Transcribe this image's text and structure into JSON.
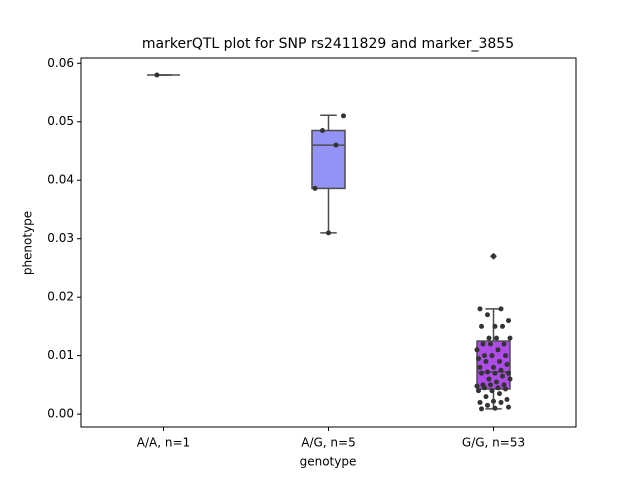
{
  "chart_data": {
    "type": "box",
    "title": "markerQTL plot for SNP rs2411829 and marker_3855",
    "x_label": "genotype",
    "y_label": "phenotype",
    "categories": [
      "A/A, n=1",
      "A/G, n=5",
      "G/G, n=53"
    ],
    "boxes": [
      {
        "min": 0.058,
        "q1": 0.058,
        "median": 0.058,
        "q3": 0.058,
        "max": 0.058,
        "color": "#7b7bf3"
      },
      {
        "min": 0.031,
        "q1": 0.0386,
        "median": 0.046,
        "q3": 0.0485,
        "max": 0.0511,
        "color": "#9393f5"
      },
      {
        "min": 0.0009,
        "q1": 0.0043,
        "median": 0.0072,
        "q3": 0.0125,
        "max": 0.018,
        "color": "#ae4ce8"
      }
    ],
    "outliers": [
      [],
      [],
      [
        0.027
      ]
    ],
    "points": [
      [
        0.058
      ],
      [
        0.031,
        0.0386,
        0.046,
        0.0485,
        0.051
      ],
      [
        0.027,
        0.018,
        0.018,
        0.017,
        0.016,
        0.015,
        0.015,
        0.015,
        0.013,
        0.013,
        0.013,
        0.012,
        0.012,
        0.012,
        0.011,
        0.011,
        0.01,
        0.01,
        0.01,
        0.0095,
        0.009,
        0.009,
        0.0085,
        0.008,
        0.008,
        0.0075,
        0.0072,
        0.007,
        0.007,
        0.007,
        0.0065,
        0.006,
        0.006,
        0.0055,
        0.005,
        0.005,
        0.005,
        0.0048,
        0.0045,
        0.0045,
        0.0043,
        0.004,
        0.004,
        0.0035,
        0.003,
        0.0025,
        0.0022,
        0.002,
        0.002,
        0.0015,
        0.0012,
        0.001,
        0.0009
      ]
    ],
    "point_color": "#333333",
    "ylim": [
      -0.0022,
      0.0609
    ],
    "yticks": [
      {
        "value": 0,
        "label": "0.00"
      },
      {
        "value": 0.01,
        "label": "0.01"
      },
      {
        "value": 0.02,
        "label": "0.02"
      },
      {
        "value": 0.03,
        "label": "0.03"
      },
      {
        "value": 0.04,
        "label": "0.04"
      },
      {
        "value": 0.05,
        "label": "0.05"
      },
      {
        "value": 0.06,
        "label": "0.06"
      }
    ],
    "grid": false
  }
}
